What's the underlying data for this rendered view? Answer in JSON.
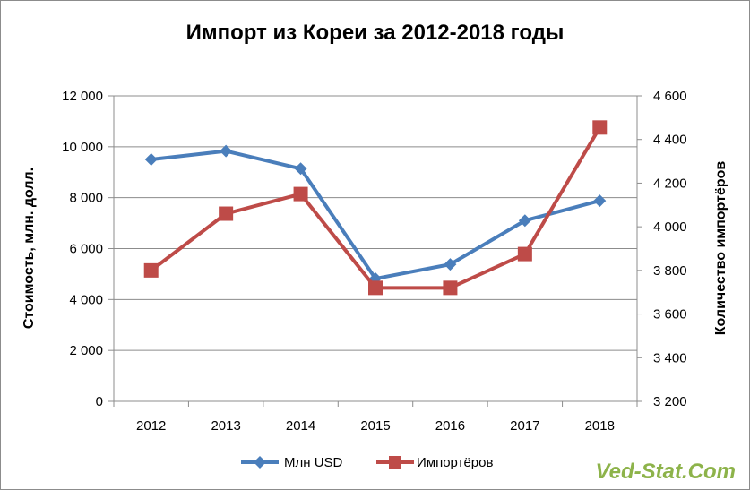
{
  "chart_data": {
    "type": "line",
    "title": "Импорт из Кореи за 2012-2018 годы",
    "categories": [
      "2012",
      "2013",
      "2014",
      "2015",
      "2016",
      "2017",
      "2018"
    ],
    "ylabel": "Стоимость, млн. долл.",
    "y2label": "Количество импортёров",
    "ylim": [
      0,
      12000
    ],
    "y2lim": [
      3200,
      4600
    ],
    "y_ticks": [
      "0",
      "2 000",
      "4 000",
      "6 000",
      "8 000",
      "10 000",
      "12 000"
    ],
    "y2_ticks": [
      "3 200",
      "3 400",
      "3 600",
      "3 800",
      "4 000",
      "4 200",
      "4 400",
      "4 600"
    ],
    "grid": true,
    "legend_position": "bottom",
    "series": [
      {
        "name": "Млн USD",
        "axis": "left",
        "color": "#4a7ebb",
        "marker": "diamond",
        "values": [
          9500,
          9830,
          9140,
          4820,
          5380,
          7100,
          7880
        ]
      },
      {
        "name": "Импортёров",
        "axis": "right",
        "color": "#be4b48",
        "marker": "square",
        "values": [
          3800,
          4060,
          4150,
          3720,
          3720,
          3875,
          4455
        ]
      }
    ]
  },
  "watermark": "Ved-Stat.Com"
}
